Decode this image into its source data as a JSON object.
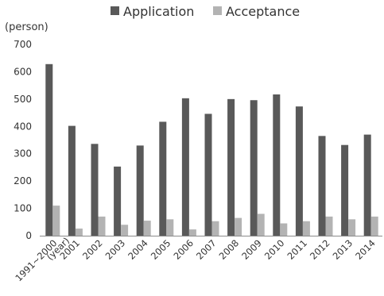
{
  "chart_data": {
    "type": "bar",
    "unit_label": "(person)",
    "xlabel": "(year)",
    "categories": [
      "1991~2000",
      "2001",
      "2002",
      "2003",
      "2004",
      "2005",
      "2006",
      "2007",
      "2008",
      "2009",
      "2010",
      "2011",
      "2012",
      "2013",
      "2014"
    ],
    "series": [
      {
        "name": "Application",
        "color": "#595959",
        "values": [
          628,
          402,
          336,
          253,
          330,
          417,
          503,
          446,
          500,
          496,
          517,
          473,
          365,
          332,
          370
        ]
      },
      {
        "name": "Acceptance",
        "color": "#b3b3b3",
        "values": [
          110,
          26,
          70,
          40,
          55,
          60,
          23,
          53,
          65,
          80,
          45,
          53,
          70,
          60,
          70
        ]
      }
    ],
    "ylim": [
      0,
      700
    ],
    "yticks": [
      "0",
      "100",
      "200",
      "300",
      "400",
      "500",
      "600",
      "700"
    ],
    "legend_position": "top-center",
    "grid": false
  }
}
